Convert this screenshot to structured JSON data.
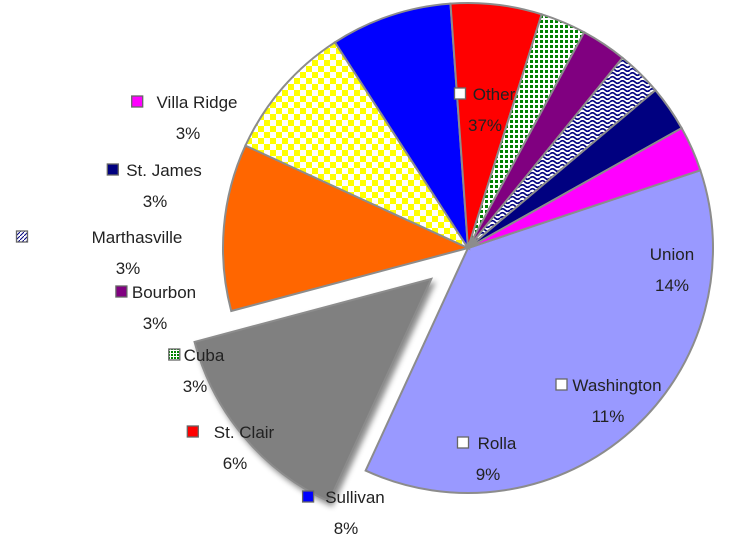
{
  "chart_data": {
    "type": "pie",
    "title": "",
    "exploded": [
      "Union"
    ],
    "series": [
      {
        "name": "Other",
        "value": 37,
        "label": "37%",
        "color": "#9999ff",
        "pattern": "solid",
        "legend_swatch": "#ffffff"
      },
      {
        "name": "Union",
        "value": 14,
        "label": "14%",
        "color": "#808080",
        "pattern": "solid",
        "legend_swatch": ""
      },
      {
        "name": "Washington",
        "value": 11,
        "label": "11%",
        "color": "#ff6600",
        "pattern": "solid",
        "legend_swatch": "#ffffff"
      },
      {
        "name": "Rolla",
        "value": 9,
        "label": "9%",
        "color": "#ffff00",
        "pattern": "checker",
        "legend_swatch": "#ffffff"
      },
      {
        "name": "Sullivan",
        "value": 8,
        "label": "8%",
        "color": "#0000ff",
        "pattern": "solid",
        "legend_swatch": "#0000ff"
      },
      {
        "name": "St. Clair",
        "value": 6,
        "label": "6%",
        "color": "#ff0000",
        "pattern": "solid",
        "legend_swatch": "#ff0000"
      },
      {
        "name": "Cuba",
        "value": 3,
        "label": "3%",
        "color": "#008000",
        "pattern": "dots",
        "legend_swatch": "pattern-green"
      },
      {
        "name": "Bourbon",
        "value": 3,
        "label": "3%",
        "color": "#800080",
        "pattern": "solid",
        "legend_swatch": "#800080"
      },
      {
        "name": "Marthasville",
        "value": 3,
        "label": "3%",
        "color": "#000080",
        "pattern": "wave",
        "legend_swatch": "pattern-navy"
      },
      {
        "name": "St. James",
        "value": 3,
        "label": "3%",
        "color": "#000080",
        "pattern": "solid",
        "legend_swatch": "#000080"
      },
      {
        "name": "Villa Ridge",
        "value": 3,
        "label": "3%",
        "color": "#ff00ff",
        "pattern": "solid",
        "legend_swatch": "#ff00ff"
      }
    ]
  }
}
